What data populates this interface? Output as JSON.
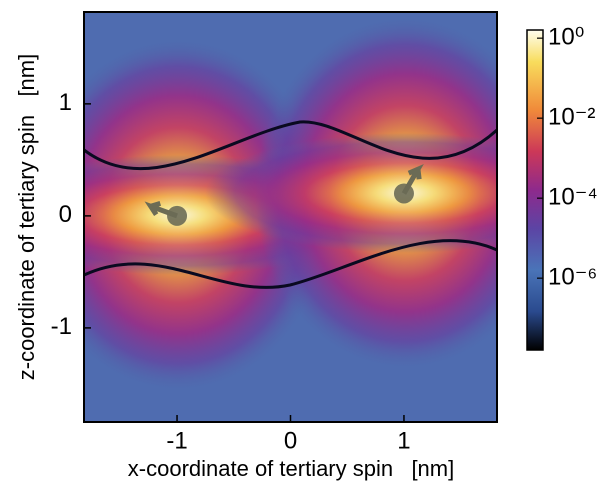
{
  "chart_data": {
    "type": "heatmap",
    "xlabel": "x-coordinate of tertiary spin   [nm]",
    "ylabel": "z-coordinate of tertiary spin   [nm]",
    "xlim": [
      -1.82,
      1.82
    ],
    "ylim": [
      -1.84,
      1.82
    ],
    "xticks": [
      -1,
      0,
      1
    ],
    "yticks": [
      -1,
      0,
      1
    ],
    "colorbar": {
      "scale": "log",
      "lim": [
        1.6e-08,
        1.6
      ],
      "ticks": [
        {
          "value": 1,
          "label": "10⁰"
        },
        {
          "value": 0.01,
          "label": "10⁻²"
        },
        {
          "value": 0.0001,
          "label": "10⁻⁴"
        },
        {
          "value": 1e-06,
          "label": "10⁻⁶"
        }
      ]
    },
    "spins": {
      "x": [
        -1,
        1
      ],
      "z": [
        0,
        0.2
      ]
    }
  }
}
